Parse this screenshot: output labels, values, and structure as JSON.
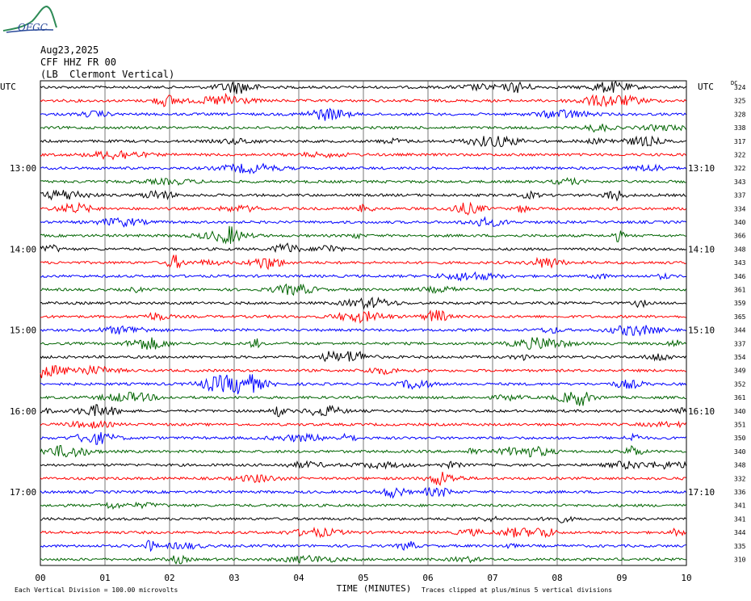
{
  "logo": {
    "text": "OFGC"
  },
  "header": {
    "date": "Aug23,2025",
    "station": "CFF HHZ FR 00",
    "location": "(LB  Clermont Vertical)"
  },
  "axis": {
    "left_tz": "UTC",
    "right_tz": "UTC",
    "dc_label": "DC",
    "xlabel": "TIME (MINUTES)"
  },
  "footer": {
    "scale_note": "Each Vertical Division =  100.00 microvolts",
    "clip_note": "Traces clipped at plus/minus 5 vertical divisions"
  },
  "colors": {
    "black": "#000000",
    "red": "#ff0000",
    "blue": "#0000ff",
    "green": "#006400"
  },
  "chart_data": {
    "type": "line",
    "x_ticks": [
      "00",
      "01",
      "02",
      "03",
      "04",
      "05",
      "06",
      "07",
      "08",
      "09",
      "10"
    ],
    "xlim": [
      0,
      10
    ],
    "left_time_labels": [
      {
        "row": 6,
        "text": "13:00"
      },
      {
        "row": 12,
        "text": "14:00"
      },
      {
        "row": 18,
        "text": "15:00"
      },
      {
        "row": 24,
        "text": "16:00"
      },
      {
        "row": 30,
        "text": "17:00"
      }
    ],
    "right_time_labels": [
      {
        "row": 6,
        "text": "13:10"
      },
      {
        "row": 12,
        "text": "14:10"
      },
      {
        "row": 18,
        "text": "15:10"
      },
      {
        "row": 24,
        "text": "16:10"
      },
      {
        "row": 30,
        "text": "17:10"
      }
    ],
    "dc_values": [
      324,
      325,
      328,
      338,
      317,
      322,
      322,
      343,
      337,
      334,
      340,
      366,
      348,
      343,
      346,
      361,
      359,
      365,
      344,
      337,
      354,
      349,
      352,
      361,
      340,
      351,
      350,
      340,
      348,
      332,
      336,
      341,
      341,
      344,
      335,
      310
    ],
    "color_cycle": [
      "black",
      "red",
      "blue",
      "green"
    ],
    "trace_count": 36
  }
}
